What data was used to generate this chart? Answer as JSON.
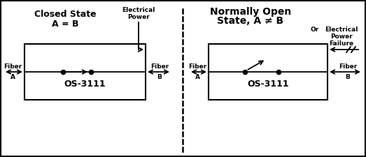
{
  "bg_color": "#d4d0c8",
  "box_color": "#ffffff",
  "line_color": "#000000",
  "title1": "Closed State",
  "subtitle1": "A = B",
  "label_os": "OS-3111",
  "fiber_label": "Fiber",
  "fiber_a": "A",
  "fiber_b": "B",
  "elec_power_line1": "Electrical",
  "elec_power_line2": "Power",
  "or_label": "Or",
  "elec_fail_line1": "Electrical",
  "elec_fail_line2": "Power",
  "elec_fail_line3": "Failure",
  "normally_open_line1": "Normally Open",
  "normally_open_line2": "State, A ≠ B"
}
